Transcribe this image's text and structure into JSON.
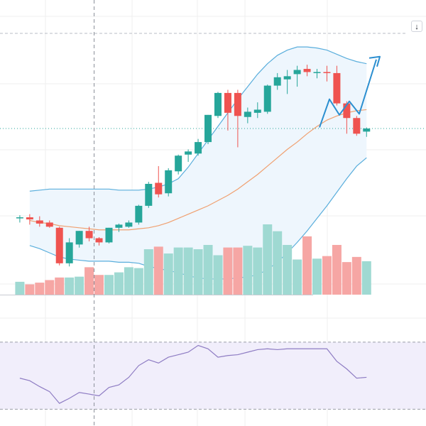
{
  "chart_data": {
    "type": "candlestick",
    "candles": [
      {
        "o": 60.8,
        "h": 61.1,
        "l": 60.4,
        "c": 60.9
      },
      {
        "o": 60.9,
        "h": 61.2,
        "l": 60.2,
        "c": 60.7
      },
      {
        "o": 60.6,
        "h": 61.0,
        "l": 60.0,
        "c": 60.3
      },
      {
        "o": 60.4,
        "h": 60.6,
        "l": 59.9,
        "c": 60.0
      },
      {
        "o": 59.9,
        "h": 60.0,
        "l": 56.3,
        "c": 56.5
      },
      {
        "o": 56.5,
        "h": 58.9,
        "l": 56.2,
        "c": 58.5
      },
      {
        "o": 58.3,
        "h": 59.6,
        "l": 58.0,
        "c": 59.6
      },
      {
        "o": 59.6,
        "h": 60.0,
        "l": 58.6,
        "c": 58.9
      },
      {
        "o": 58.9,
        "h": 59.0,
        "l": 58.2,
        "c": 58.5
      },
      {
        "o": 58.5,
        "h": 59.9,
        "l": 58.4,
        "c": 59.9
      },
      {
        "o": 59.9,
        "h": 60.3,
        "l": 59.5,
        "c": 60.2
      },
      {
        "o": 60.0,
        "h": 60.6,
        "l": 59.9,
        "c": 60.4
      },
      {
        "o": 60.4,
        "h": 62.1,
        "l": 60.2,
        "c": 62.0
      },
      {
        "o": 62.0,
        "h": 64.3,
        "l": 61.8,
        "c": 64.1
      },
      {
        "o": 64.2,
        "h": 65.8,
        "l": 62.8,
        "c": 63.1
      },
      {
        "o": 63.2,
        "h": 65.6,
        "l": 62.9,
        "c": 65.4
      },
      {
        "o": 65.3,
        "h": 66.9,
        "l": 65.0,
        "c": 66.8
      },
      {
        "o": 66.9,
        "h": 67.4,
        "l": 66.2,
        "c": 67.2
      },
      {
        "o": 67.0,
        "h": 68.4,
        "l": 66.8,
        "c": 68.1
      },
      {
        "o": 68.1,
        "h": 70.7,
        "l": 67.9,
        "c": 70.7
      },
      {
        "o": 70.6,
        "h": 72.9,
        "l": 70.4,
        "c": 72.8
      },
      {
        "o": 72.8,
        "h": 73.1,
        "l": 69.2,
        "c": 70.9
      },
      {
        "o": 72.8,
        "h": 73.1,
        "l": 67.6,
        "c": 70.6
      },
      {
        "o": 70.5,
        "h": 71.4,
        "l": 69.9,
        "c": 71.0
      },
      {
        "o": 70.9,
        "h": 71.9,
        "l": 70.4,
        "c": 71.2
      },
      {
        "o": 71.0,
        "h": 73.6,
        "l": 70.8,
        "c": 73.5
      },
      {
        "o": 73.5,
        "h": 74.7,
        "l": 73.1,
        "c": 74.3
      },
      {
        "o": 74.1,
        "h": 75.0,
        "l": 72.7,
        "c": 74.4
      },
      {
        "o": 74.6,
        "h": 75.4,
        "l": 73.4,
        "c": 75.0
      },
      {
        "o": 75.1,
        "h": 75.5,
        "l": 74.4,
        "c": 74.8
      },
      {
        "o": 74.8,
        "h": 75.1,
        "l": 74.2,
        "c": 74.8
      },
      {
        "o": 74.8,
        "h": 75.4,
        "l": 73.9,
        "c": 74.7
      },
      {
        "o": 74.7,
        "h": 75.4,
        "l": 71.6,
        "c": 71.8
      },
      {
        "o": 71.8,
        "h": 72.0,
        "l": 68.9,
        "c": 70.4
      },
      {
        "o": 70.4,
        "h": 70.6,
        "l": 68.7,
        "c": 68.9
      },
      {
        "o": 69.1,
        "h": 69.5,
        "l": 68.6,
        "c": 69.4
      }
    ],
    "bollinger": {
      "upper": [
        null,
        63.4,
        63.5,
        63.6,
        63.6,
        63.6,
        63.6,
        63.6,
        63.6,
        63.6,
        63.5,
        63.5,
        63.5,
        63.6,
        63.8,
        64.1,
        64.6,
        65.7,
        67.0,
        68.3,
        69.6,
        70.9,
        72.2,
        73.4,
        74.6,
        75.6,
        76.4,
        76.9,
        77.2,
        77.2,
        77.1,
        76.9,
        76.5,
        76.1,
        75.8,
        75.6
      ],
      "middle": [
        null,
        60.6,
        60.4,
        60.3,
        60.1,
        60.0,
        59.9,
        59.8,
        59.7,
        59.7,
        59.7,
        59.7,
        59.8,
        59.9,
        60.1,
        60.4,
        60.8,
        61.2,
        61.6,
        62.0,
        62.5,
        63.0,
        63.6,
        64.3,
        65.0,
        65.8,
        66.6,
        67.4,
        68.1,
        68.9,
        69.6,
        70.2,
        70.6,
        70.9,
        71.1,
        71.2
      ],
      "lower": [
        null,
        58.2,
        57.9,
        57.5,
        57.1,
        56.9,
        56.8,
        56.7,
        56.7,
        56.7,
        56.6,
        56.6,
        56.5,
        56.2,
        56.0,
        55.8,
        55.6,
        55.3,
        55.1,
        55.0,
        55.0,
        55.0,
        55.1,
        55.2,
        55.4,
        55.9,
        56.6,
        57.5,
        58.5,
        59.6,
        60.8,
        62.0,
        63.3,
        64.6,
        65.8,
        66.6
      ]
    },
    "volume": [
      15,
      12,
      14,
      17,
      20,
      20,
      21,
      32,
      23,
      23,
      26,
      32,
      31,
      53,
      56,
      48,
      55,
      55,
      53,
      58,
      46,
      55,
      55,
      57,
      55,
      82,
      74,
      58,
      41,
      68,
      42,
      45,
      58,
      38,
      44,
      39
    ],
    "rsi": [
      48.5,
      47.0,
      43.5,
      40.5,
      33.5,
      36.5,
      40.0,
      39.0,
      38.0,
      43.0,
      44.5,
      49.0,
      56.0,
      59.5,
      57.5,
      61.0,
      62.5,
      64.0,
      68.0,
      66.0,
      61.0,
      62.0,
      62.5,
      64.0,
      65.5,
      66.0,
      65.5,
      66.0,
      66.0,
      66.0,
      66.0,
      66.0,
      58.5,
      54.0,
      48.5,
      49.0
    ],
    "rsi_levels": [
      70,
      30
    ],
    "forecast_arrow": [
      69.5,
      72.2,
      70.7,
      72.0,
      70.8,
      76.0
    ],
    "xlim": [
      -2,
      41
    ],
    "ylim": [
      53.5,
      78.5
    ],
    "crosshair_index": 7.5,
    "last_price": 69.4,
    "colors": {
      "up": "#26a69a",
      "down": "#ef5350",
      "volume_up": "#9fd9d2",
      "volume_down": "#f6a6a4",
      "band_line": "#5aaedc",
      "band_fill": "#eef6fd",
      "middle_line": "#f0a070",
      "rsi_line": "#8e7cc3",
      "rsi_fill": "#f1eefb",
      "forecast": "#2c8fd0",
      "grid": "#efefef",
      "crosshair": "#8a8f99",
      "last_price": "#26a69a"
    }
  },
  "ui": {
    "scroll_icon": "arrow-down-icon",
    "scroll_glyph": "↓"
  }
}
